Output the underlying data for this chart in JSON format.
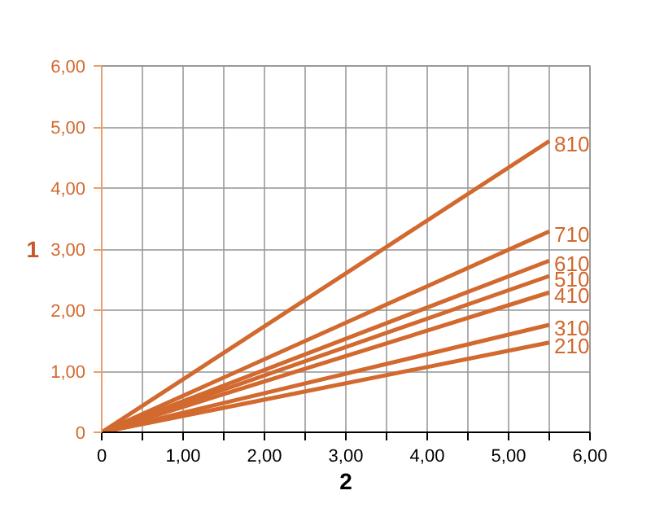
{
  "chart_data": {
    "type": "line",
    "xlabel": "2",
    "ylabel": "1",
    "xlim": [
      0,
      6
    ],
    "ylim": [
      0,
      6
    ],
    "xticks": [
      0,
      {
        "value": 0.5,
        "label": null
      },
      {
        "value": 1,
        "label": "1,00"
      },
      {
        "value": 1.5,
        "label": null
      },
      {
        "value": 2,
        "label": "2,00"
      },
      {
        "value": 2.5,
        "label": null
      },
      {
        "value": 3,
        "label": "3,00"
      },
      {
        "value": 3.5,
        "label": null
      },
      {
        "value": 4,
        "label": "4,00"
      },
      {
        "value": 4.5,
        "label": null
      },
      {
        "value": 5,
        "label": "5,00"
      },
      {
        "value": 5.5,
        "label": null
      },
      {
        "value": 6,
        "label": "6,00"
      }
    ],
    "yticks": [
      0,
      {
        "value": 1,
        "label": "1,00"
      },
      {
        "value": 2,
        "label": "2,00"
      },
      {
        "value": 3,
        "label": "3,00"
      },
      {
        "value": 4,
        "label": "4,00"
      },
      {
        "value": 5,
        "label": "5,00"
      },
      {
        "value": 6,
        "label": "6,00"
      }
    ],
    "x": [
      0,
      5.5
    ],
    "grid": true,
    "legend": false,
    "marker": "none",
    "line_style": "solid",
    "series": [
      {
        "name": "810",
        "color": "#d2692e",
        "values": [
          0,
          4.77
        ]
      },
      {
        "name": "710",
        "color": "#d2692e",
        "values": [
          0,
          3.29
        ]
      },
      {
        "name": "610",
        "color": "#d2692e",
        "values": [
          0,
          2.81
        ]
      },
      {
        "name": "510",
        "color": "#d2692e",
        "values": [
          0,
          2.56
        ]
      },
      {
        "name": "410",
        "color": "#d2692e",
        "values": [
          0,
          2.29
        ]
      },
      {
        "name": "310",
        "color": "#d2692e",
        "values": [
          0,
          1.76
        ]
      },
      {
        "name": "210",
        "color": "#d2692e",
        "values": [
          0,
          1.47
        ]
      }
    ]
  }
}
